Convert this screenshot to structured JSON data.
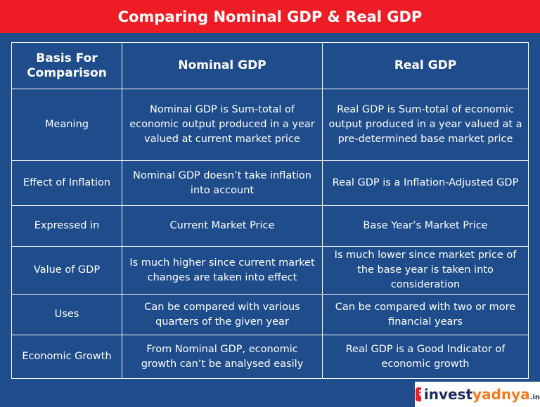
{
  "header": {
    "title": "Comparing Nominal GDP & Real GDP"
  },
  "table": {
    "columns": [
      "Basis For Comparison",
      "Nominal GDP",
      "Real GDP"
    ],
    "rows": [
      [
        "Meaning",
        "Nominal GDP is Sum-total of economic output produced in a year valued at current market price",
        "Real GDP is Sum-total of economic output produced in a year valued at a pre-determined base market price"
      ],
      [
        "Effect of Inflation",
        "Nominal GDP doesn’t take inflation into account",
        "Real GDP is a Inflation-Adjusted GDP"
      ],
      [
        "Expressed in",
        "Current Market Price",
        "Base Year’s Market Price"
      ],
      [
        "Value of GDP",
        "Is much higher since current market changes are taken into effect",
        "Is much lower since market price of the base year is taken into consideration"
      ],
      [
        "Uses",
        "Can be compared with various quarters of the given year",
        "Can be compared with two or more financial years"
      ],
      [
        "Economic Growth",
        "From Nominal GDP, economic growth can’t be analysed easily",
        "Real GDP is a Good Indicator of economic growth"
      ]
    ]
  },
  "logo": {
    "parts": [
      "invest",
      "yadnya",
      ".in"
    ]
  }
}
